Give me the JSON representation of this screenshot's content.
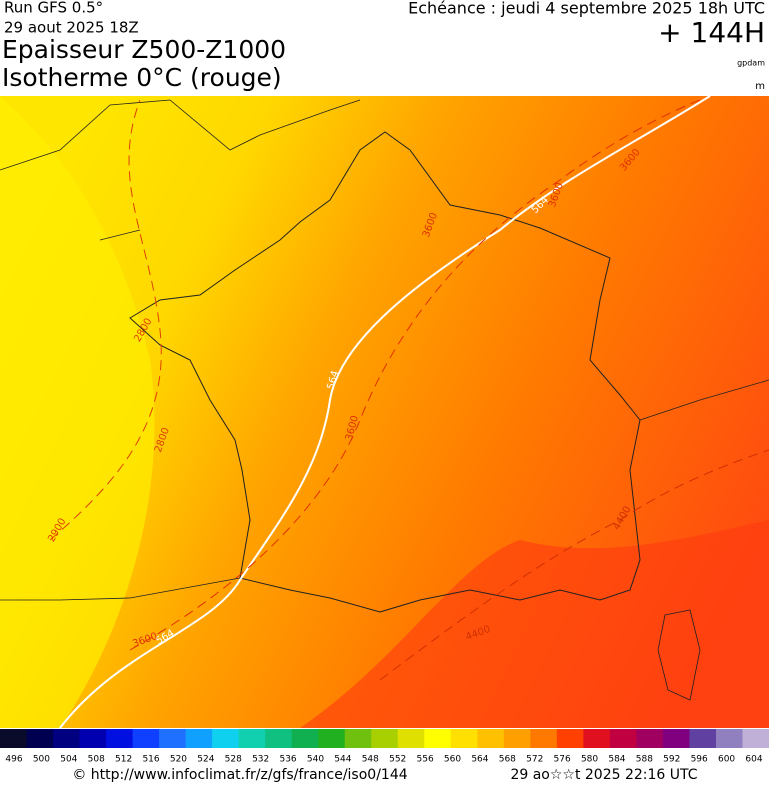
{
  "header": {
    "run": "Run GFS 0.5°",
    "run_date": "29 aout 2025 18Z",
    "echeance": "Echéance : jeudi 4 septembre 2025 18h UTC",
    "lead": "+ 144H",
    "title_line1": "Epaisseur Z500-Z1000",
    "title_line2": "Isotherme 0°C (rouge)",
    "unit1": "gpdam",
    "unit2": "m"
  },
  "map": {
    "contour_labels": [
      "564",
      "564",
      "564",
      "3600",
      "3600",
      "3600",
      "3600",
      "3600",
      "2800",
      "2800",
      "2900",
      "4400",
      "4400"
    ]
  },
  "colorbar": {
    "labels": [
      "496",
      "500",
      "504",
      "508",
      "512",
      "516",
      "520",
      "524",
      "528",
      "532",
      "536",
      "540",
      "544",
      "548",
      "552",
      "556",
      "560",
      "564",
      "568",
      "572",
      "576",
      "580",
      "584",
      "588",
      "592",
      "596",
      "600",
      "604"
    ],
    "colors": [
      "#0a0a2a",
      "#000050",
      "#000080",
      "#0000b0",
      "#0010e0",
      "#1040ff",
      "#2070ff",
      "#10a0ff",
      "#10d0f0",
      "#10d0b0",
      "#10c080",
      "#10b050",
      "#20b020",
      "#70c010",
      "#a8d000",
      "#e0e000",
      "#ffff00",
      "#ffe000",
      "#ffc000",
      "#ffa000",
      "#ff7800",
      "#ff4000",
      "#e01020",
      "#c00040",
      "#a00060",
      "#800080",
      "#6040a0",
      "#9080c0",
      "#c0b0d8"
    ]
  },
  "footer": {
    "url": "© http://www.infoclimat.fr/z/gfs/france/iso0/144",
    "generated": "29 ao☆☆t 2025 22:16 UTC"
  }
}
